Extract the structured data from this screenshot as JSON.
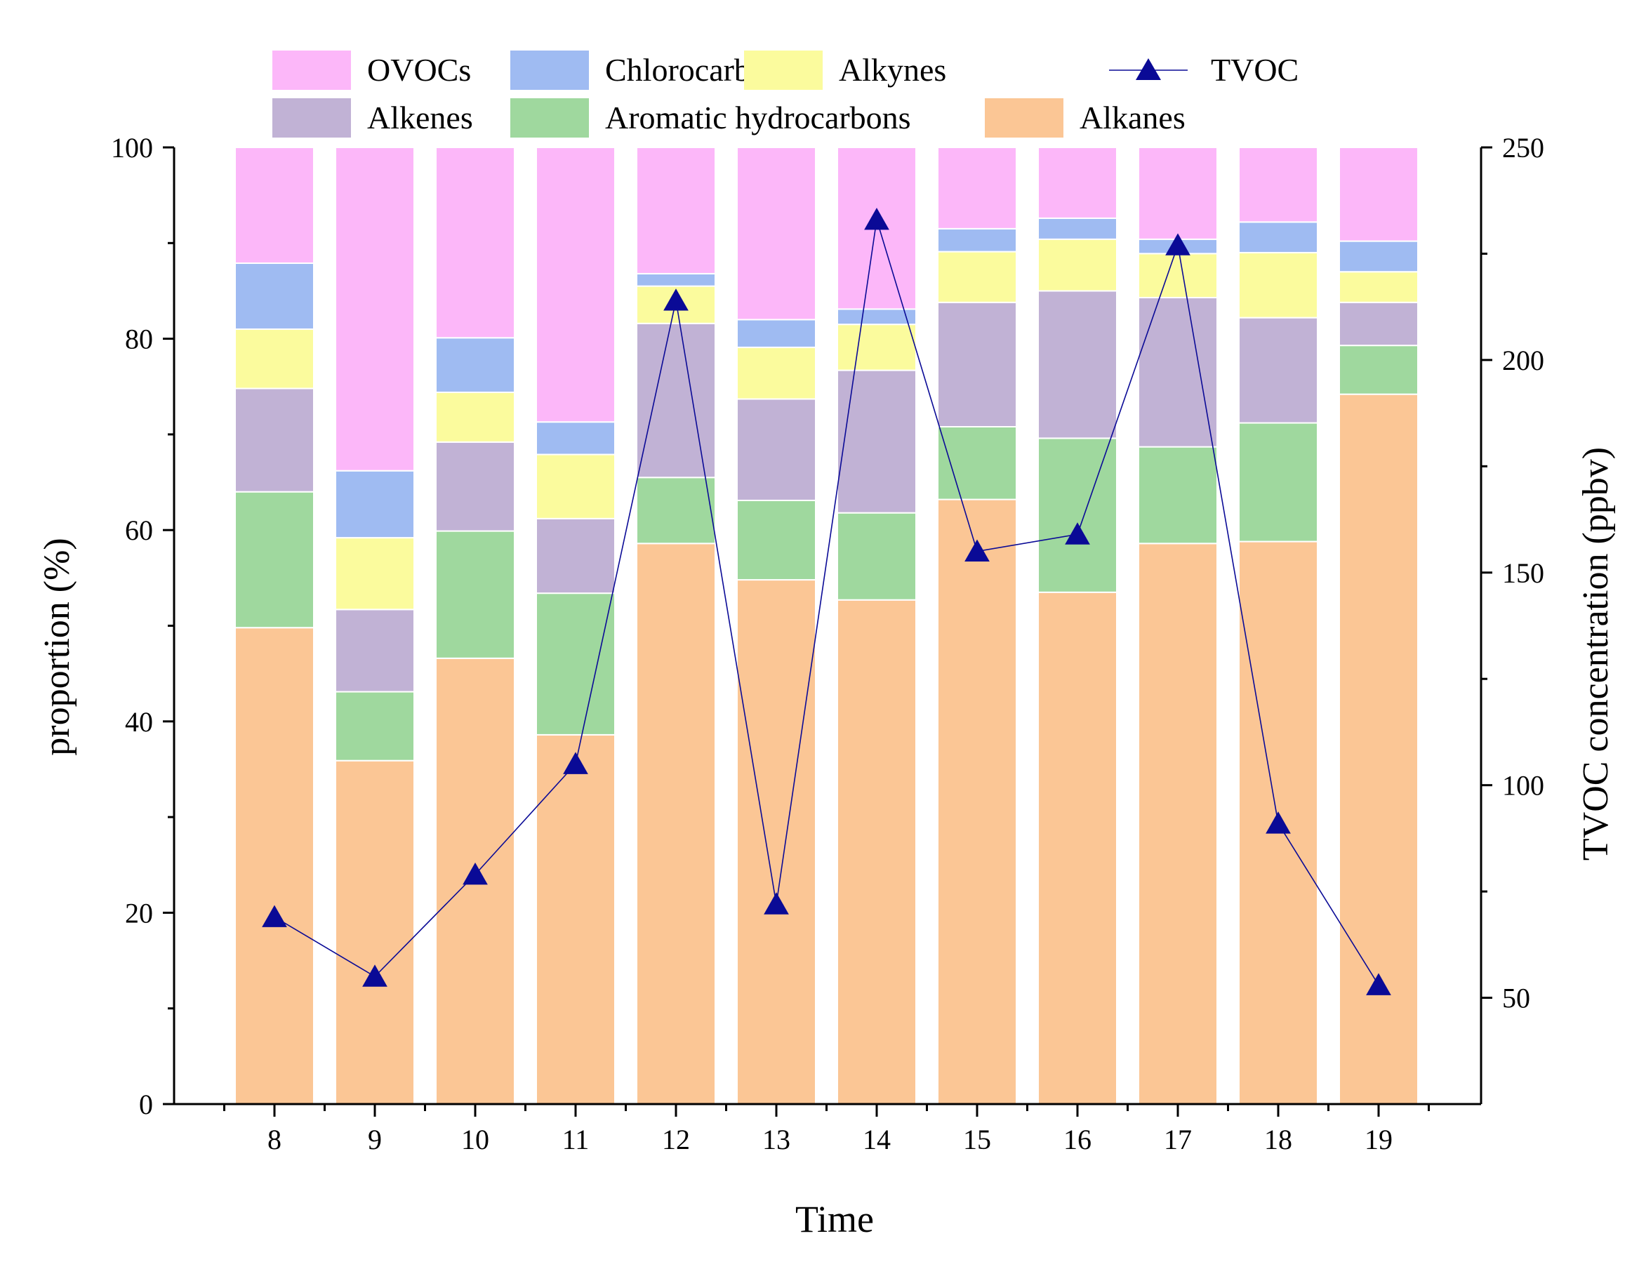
{
  "chart_data": {
    "type": "bar",
    "stacked": true,
    "categories": [
      "8",
      "9",
      "10",
      "11",
      "12",
      "13",
      "14",
      "15",
      "16",
      "17",
      "18",
      "19"
    ],
    "series": [
      {
        "name": "Alkanes",
        "color": "#FBC695",
        "values": [
          49.8,
          35.9,
          46.6,
          38.6,
          58.6,
          54.8,
          52.7,
          63.2,
          53.5,
          58.6,
          58.8,
          74.2
        ]
      },
      {
        "name": "Aromatic hydrocarbons",
        "color": "#9FD89E",
        "values": [
          14.2,
          7.2,
          13.3,
          14.8,
          6.9,
          8.3,
          9.1,
          7.6,
          16.1,
          10.1,
          12.4,
          5.1
        ]
      },
      {
        "name": "Alkenes",
        "color": "#C1B2D5",
        "values": [
          10.8,
          8.6,
          9.3,
          7.8,
          16.1,
          10.6,
          14.9,
          13.0,
          15.4,
          15.6,
          11.0,
          4.5
        ]
      },
      {
        "name": "Alkynes",
        "color": "#FBFB9D",
        "values": [
          6.2,
          7.5,
          5.2,
          6.7,
          3.9,
          5.4,
          4.8,
          5.3,
          5.4,
          4.6,
          6.8,
          3.2
        ]
      },
      {
        "name": "Chlorocarbons",
        "color": "#9FBBF2",
        "values": [
          6.9,
          7.0,
          5.7,
          3.4,
          1.3,
          2.9,
          1.6,
          2.4,
          2.2,
          1.5,
          3.2,
          3.2
        ]
      },
      {
        "name": "OVOCs",
        "color": "#FCB7F9",
        "values": [
          12.1,
          33.8,
          19.9,
          28.7,
          13.2,
          18.0,
          16.9,
          8.5,
          7.4,
          9.6,
          7.8,
          9.8
        ]
      }
    ],
    "line_series": {
      "name": "TVOC",
      "color": "#0A0A96",
      "axis": "right",
      "marker": "triangle",
      "values": [
        69,
        55,
        79,
        105,
        214,
        72,
        233,
        155,
        159,
        227,
        91,
        53
      ]
    },
    "legend": {
      "row1": [
        "OVOCs",
        "Chlorocarbons",
        "Alkynes",
        "TVOC"
      ],
      "row2": [
        "Alkenes",
        "Aromatic hydrocarbons",
        "Alkanes"
      ],
      "placement": "top"
    },
    "xlabel": "Time",
    "ylabel": "proportion (%)",
    "y2label": "TVOC concentration (ppbv)",
    "ylim": [
      0,
      100
    ],
    "yticks": [
      "0",
      "20",
      "40",
      "60",
      "80",
      "100"
    ],
    "y2lim": [
      25,
      250
    ],
    "y2ticks": [
      "50",
      "100",
      "150",
      "200",
      "250"
    ],
    "grid": false
  }
}
